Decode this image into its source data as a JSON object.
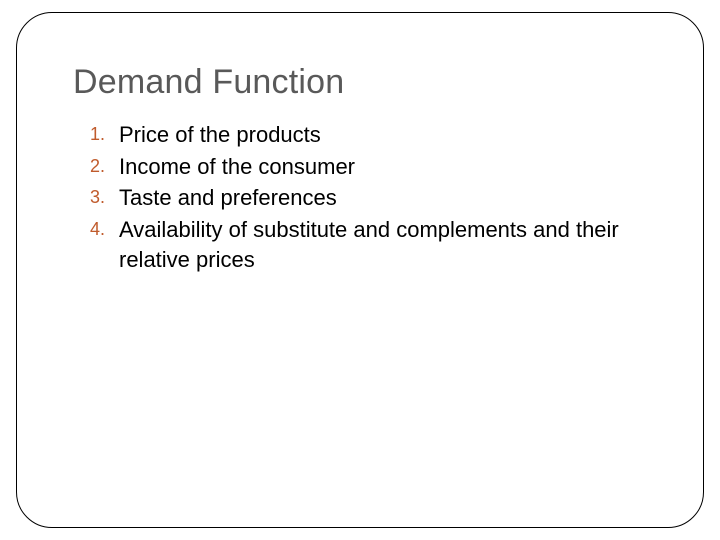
{
  "slide": {
    "title": "Demand Function",
    "title_color": "#595959",
    "title_fontsize": 34,
    "frame_border_color": "#000000",
    "frame_border_radius": 36,
    "background_color": "#ffffff",
    "list_number_color": "#c05b2c",
    "list_text_color": "#000000",
    "list_number_fontsize": 18,
    "list_text_fontsize": 22,
    "items": [
      {
        "number": "1.",
        "text": "Price of the products"
      },
      {
        "number": "2.",
        "text": "Income of the consumer"
      },
      {
        "number": "3.",
        "text": "Taste and preferences"
      },
      {
        "number": "4.",
        "text": "Availability of substitute and complements and their relative prices"
      }
    ]
  }
}
